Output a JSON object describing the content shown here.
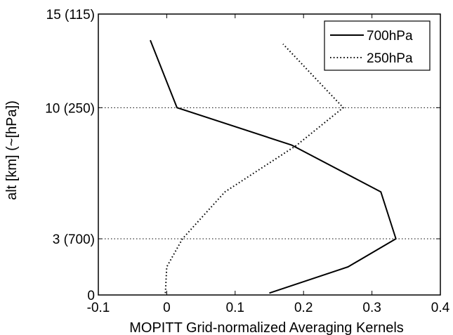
{
  "chart_data": {
    "type": "line",
    "title": "",
    "xlabel": "MOPITT Grid-normalized Averaging Kernels",
    "ylabel": "alt [km] (~[hPa])",
    "xlim": [
      -0.1,
      0.4
    ],
    "ylim": [
      0,
      15
    ],
    "x_ticks": [
      {
        "value": -0.1,
        "label": "-0.1"
      },
      {
        "value": 0,
        "label": "0"
      },
      {
        "value": 0.1,
        "label": "0.1"
      },
      {
        "value": 0.2,
        "label": "0.2"
      },
      {
        "value": 0.3,
        "label": "0.3"
      },
      {
        "value": 0.4,
        "label": "0.4"
      }
    ],
    "y_ticks": [
      {
        "value": 0,
        "label": "0"
      },
      {
        "value": 3,
        "label": "3 (700)"
      },
      {
        "value": 10,
        "label": "10 (250)"
      },
      {
        "value": 15,
        "label": "15 (115)"
      }
    ],
    "grid": {
      "horizontal_at": [
        3,
        10
      ],
      "style": "dotted"
    },
    "legend": {
      "position": "top-right"
    },
    "series": [
      {
        "name": "700hPa",
        "style": "solid",
        "color": "#000000",
        "points": [
          {
            "x": 0.15,
            "y": 0.1
          },
          {
            "x": 0.265,
            "y": 1.5
          },
          {
            "x": 0.335,
            "y": 3.0
          },
          {
            "x": 0.313,
            "y": 5.5
          },
          {
            "x": 0.183,
            "y": 8.0
          },
          {
            "x": 0.015,
            "y": 10.0
          },
          {
            "x": -0.024,
            "y": 13.6
          }
        ]
      },
      {
        "name": "250hPa",
        "style": "dotted",
        "color": "#000000",
        "points": [
          {
            "x": -0.002,
            "y": 0.1
          },
          {
            "x": 0.0,
            "y": 1.5
          },
          {
            "x": 0.023,
            "y": 3.0
          },
          {
            "x": 0.085,
            "y": 5.5
          },
          {
            "x": 0.19,
            "y": 8.0
          },
          {
            "x": 0.258,
            "y": 10.0
          },
          {
            "x": 0.17,
            "y": 13.4
          }
        ]
      }
    ]
  }
}
